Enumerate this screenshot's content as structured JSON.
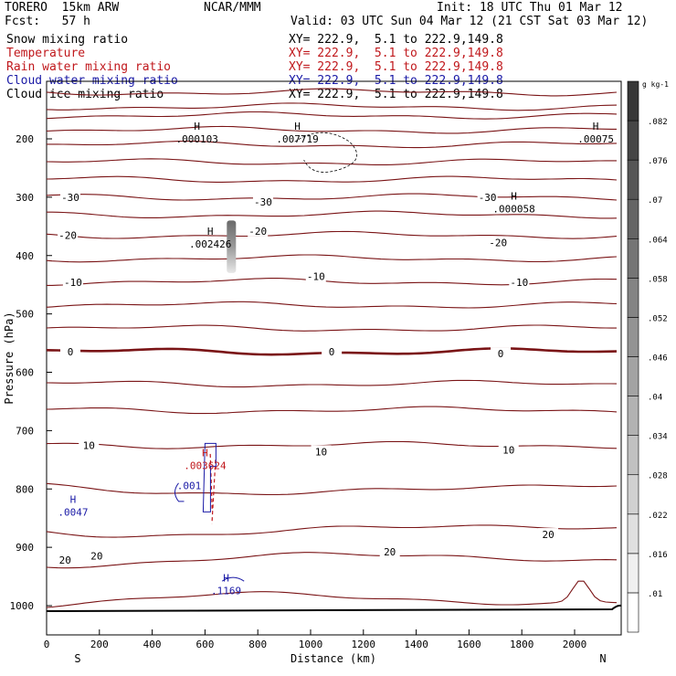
{
  "header": {
    "model": "TORERO  15km ARW",
    "fcst": "Fcst:   57 h",
    "org": "NCAR/MMM",
    "init": "Init: 18 UTC Thu 01 Mar 12",
    "valid": "Valid: 03 UTC Sun 04 Mar 12 (21 CST Sat 03 Mar 12)"
  },
  "fields": [
    {
      "name": "Snow mixing ratio",
      "xy": "XY= 222.9,  5.1 to 222.9,149.8",
      "color": "#000000"
    },
    {
      "name": "Temperature",
      "xy": "XY= 222.9,  5.1 to 222.9,149.8",
      "color": "#c0181c"
    },
    {
      "name": "Rain water mixing ratio",
      "xy": "XY= 222.9,  5.1 to 222.9,149.8",
      "color": "#c0181c"
    },
    {
      "name": "Cloud water mixing ratio",
      "xy": "XY= 222.9,  5.1 to 222.9,149.8",
      "color": "#1a1aa6"
    },
    {
      "name": "Cloud ice mixing ratio",
      "xy": "XY= 222.9,  5.1 to 222.9,149.8",
      "color": "#000000"
    }
  ],
  "chart_data": {
    "type": "cross-section contour",
    "xlabel": "Distance (km)",
    "ylabel": "Pressure (hPa)",
    "xlim": [
      0,
      2180
    ],
    "ylim": [
      1050,
      100
    ],
    "xticks": [
      0,
      200,
      400,
      600,
      800,
      1000,
      1200,
      1400,
      1600,
      1800,
      2000
    ],
    "yticks": [
      200,
      300,
      400,
      500,
      600,
      700,
      800,
      900,
      1000
    ],
    "end_labels": {
      "left": "S",
      "right": "N"
    },
    "colorbar": {
      "unit": "g kg-1",
      "levels": [
        ".01",
        ".016",
        ".022",
        ".028",
        ".034",
        ".04",
        ".046",
        ".052",
        ".058",
        ".064",
        ".07",
        ".076",
        ".082"
      ],
      "values": [
        0.01,
        0.016,
        0.022,
        0.028,
        0.034,
        0.04,
        0.046,
        0.052,
        0.058,
        0.064,
        0.07,
        0.076,
        0.082
      ]
    },
    "temperature_isotherms": [
      {
        "p": 120,
        "label": ""
      },
      {
        "p": 145,
        "label": ""
      },
      {
        "p": 160,
        "label": ""
      },
      {
        "p": 185,
        "label": ""
      },
      {
        "p": 210,
        "label": ""
      },
      {
        "p": 240,
        "label": ""
      },
      {
        "p": 270,
        "label": ""
      },
      {
        "p": 300,
        "label": "-30"
      },
      {
        "p": 330,
        "label": ""
      },
      {
        "p": 365,
        "label": "-20"
      },
      {
        "p": 405,
        "label": ""
      },
      {
        "p": 445,
        "label": "-10"
      },
      {
        "p": 485,
        "label": ""
      },
      {
        "p": 525,
        "label": ""
      },
      {
        "p": 565,
        "label": "0"
      },
      {
        "p": 620,
        "label": ""
      },
      {
        "p": 665,
        "label": ""
      },
      {
        "p": 725,
        "label": "10"
      },
      {
        "p": 800,
        "label": ""
      },
      {
        "p": 870,
        "label": "20"
      },
      {
        "p": 920,
        "label": "20"
      },
      {
        "p": 990,
        "label": ""
      }
    ],
    "isotherm_labels": [
      {
        "x": 90,
        "p": 300,
        "text": "-30"
      },
      {
        "x": 1670,
        "p": 300,
        "text": "-30"
      },
      {
        "x": 820,
        "p": 308,
        "text": "-30"
      },
      {
        "x": 80,
        "p": 365,
        "text": "-20"
      },
      {
        "x": 800,
        "p": 358,
        "text": "-20"
      },
      {
        "x": 1710,
        "p": 378,
        "text": "-20"
      },
      {
        "x": 100,
        "p": 446,
        "text": "-10"
      },
      {
        "x": 1020,
        "p": 436,
        "text": "-10"
      },
      {
        "x": 1790,
        "p": 446,
        "text": "-10"
      },
      {
        "x": 90,
        "p": 565,
        "text": "0"
      },
      {
        "x": 1080,
        "p": 565,
        "text": "0"
      },
      {
        "x": 1720,
        "p": 568,
        "text": "0"
      },
      {
        "x": 160,
        "p": 725,
        "text": "10"
      },
      {
        "x": 1040,
        "p": 736,
        "text": "10"
      },
      {
        "x": 1750,
        "p": 733,
        "text": "10"
      },
      {
        "x": 70,
        "p": 922,
        "text": "20"
      },
      {
        "x": 190,
        "p": 915,
        "text": "20"
      },
      {
        "x": 1300,
        "p": 908,
        "text": "20"
      },
      {
        "x": 1900,
        "p": 878,
        "text": "20"
      }
    ],
    "maxima": [
      {
        "x": 570,
        "p": 192,
        "mark": "H",
        "value": ".000103",
        "color": "#000000"
      },
      {
        "x": 950,
        "p": 192,
        "mark": "H",
        "value": ".007719",
        "color": "#000000"
      },
      {
        "x": 2080,
        "p": 192,
        "mark": "H",
        "value": ".00075",
        "color": "#000000"
      },
      {
        "x": 1770,
        "p": 312,
        "mark": "H",
        "value": ".000058",
        "color": "#000000"
      },
      {
        "x": 620,
        "p": 372,
        "mark": "H",
        "value": ".002426",
        "color": "#000000"
      },
      {
        "x": 600,
        "p": 752,
        "mark": "H",
        "value": ".003624",
        "color": "#c0181c"
      },
      {
        "x": 100,
        "p": 832,
        "mark": "H",
        "value": ".0047",
        "color": "#1a1aa6"
      },
      {
        "x": 680,
        "p": 966,
        "mark": "H",
        "value": ".1169",
        "color": "#1a1aa6"
      }
    ],
    "cloud_water_label": {
      "x": 540,
      "p": 800,
      "text": ".001"
    },
    "grid": false,
    "legend": "header-top-left"
  }
}
